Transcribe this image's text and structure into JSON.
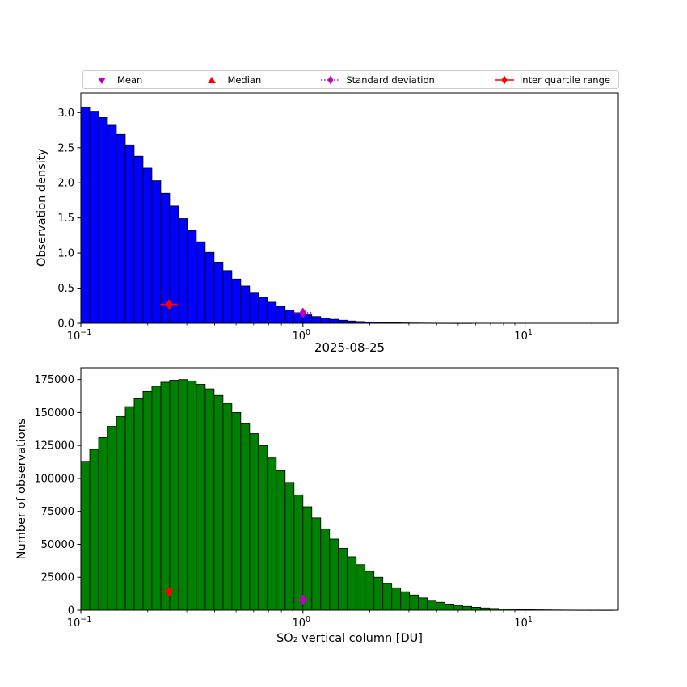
{
  "figure": {
    "title": "2025-08-25",
    "xlabel": "SO₂ vertical column [DU]",
    "background": "#ffffff"
  },
  "legend": {
    "items": [
      {
        "label": "Mean",
        "marker": "triangle-down",
        "color": "#BF00BF"
      },
      {
        "label": "Median",
        "marker": "triangle-up",
        "color": "#FF0000"
      },
      {
        "label": "Standard deviation",
        "marker": "diamond-dotted-line",
        "color": "#BF00BF"
      },
      {
        "label": "Inter quartile range",
        "marker": "diamond-solid-line",
        "color": "#FF0000"
      }
    ]
  },
  "chart_data": [
    {
      "type": "bar",
      "id": "density",
      "title": "",
      "ylabel": "Observation density",
      "bar_color": "#0000FF",
      "edge_color": "#000000",
      "x_scale": "log",
      "xlim": [
        0.1,
        26.3
      ],
      "ylim": [
        0,
        3.28
      ],
      "yticks": [
        0.0,
        0.5,
        1.0,
        1.5,
        2.0,
        2.5,
        3.0
      ],
      "ytick_labels": [
        "0.0",
        "0.5",
        "1.0",
        "1.5",
        "2.0",
        "2.5",
        "3.0"
      ],
      "xticks": [
        0.1,
        1,
        10
      ],
      "xtick_labels": [
        {
          "base": "10",
          "exp": "−1"
        },
        {
          "base": "10",
          "exp": "0"
        },
        {
          "base": "10",
          "exp": "1"
        }
      ],
      "bin_log_start": -1.0,
      "bin_log_width": 0.04,
      "values": [
        3.08,
        3.02,
        2.93,
        2.82,
        2.69,
        2.54,
        2.38,
        2.21,
        2.03,
        1.85,
        1.67,
        1.49,
        1.32,
        1.16,
        1.01,
        0.87,
        0.75,
        0.63,
        0.53,
        0.44,
        0.37,
        0.3,
        0.24,
        0.19,
        0.15,
        0.12,
        0.095,
        0.074,
        0.056,
        0.043,
        0.032,
        0.024,
        0.018,
        0.013,
        0.009,
        0.007,
        0.005,
        0.0035,
        0.0025,
        0.0018,
        0.0012,
        0.0009,
        0.0006,
        0.0004,
        0,
        0,
        0,
        0,
        0,
        0,
        0,
        0,
        0,
        0,
        0,
        0,
        0,
        0,
        0,
        0
      ],
      "markers": [
        {
          "name": "inter-quartile-range",
          "x": 0.25,
          "y": 0.27,
          "color": "#FF0000",
          "line": "solid"
        },
        {
          "name": "standard-deviation",
          "x": 1.0,
          "y": 0.15,
          "color": "#BF00BF",
          "line": "dotted"
        }
      ]
    },
    {
      "type": "bar",
      "id": "counts",
      "title": "",
      "ylabel": "Number of observations",
      "bar_color": "#008000",
      "edge_color": "#000000",
      "x_scale": "log",
      "xlim": [
        0.1,
        26.3
      ],
      "ylim": [
        0,
        184000
      ],
      "yticks": [
        0,
        25000,
        50000,
        75000,
        100000,
        125000,
        150000,
        175000
      ],
      "ytick_labels": [
        "0",
        "25000",
        "50000",
        "75000",
        "100000",
        "125000",
        "150000",
        "175000"
      ],
      "xticks": [
        0.1,
        1,
        10
      ],
      "xtick_labels": [
        {
          "base": "10",
          "exp": "−1"
        },
        {
          "base": "10",
          "exp": "0"
        },
        {
          "base": "10",
          "exp": "1"
        }
      ],
      "bin_log_start": -1.0,
      "bin_log_width": 0.04,
      "values": [
        113000,
        122000,
        131000,
        139500,
        147000,
        154500,
        160500,
        166000,
        170000,
        173000,
        174500,
        175000,
        174000,
        171500,
        168000,
        163000,
        157000,
        150000,
        142000,
        134000,
        125000,
        115500,
        106000,
        97000,
        87500,
        78500,
        70000,
        61500,
        54000,
        47000,
        40500,
        34500,
        29500,
        25000,
        20500,
        17000,
        14000,
        11500,
        9300,
        7500,
        6000,
        4700,
        3700,
        2900,
        2200,
        1700,
        1300,
        1000,
        750,
        550,
        400,
        300,
        220,
        160,
        110,
        80,
        55,
        40,
        25,
        18
      ],
      "markers": [
        {
          "name": "inter-quartile-range",
          "x": 0.25,
          "y": 14000,
          "color": "#FF0000",
          "line": "solid"
        },
        {
          "name": "standard-deviation",
          "x": 1.0,
          "y": 8000,
          "color": "#BF00BF",
          "line": "dotted"
        }
      ]
    }
  ]
}
